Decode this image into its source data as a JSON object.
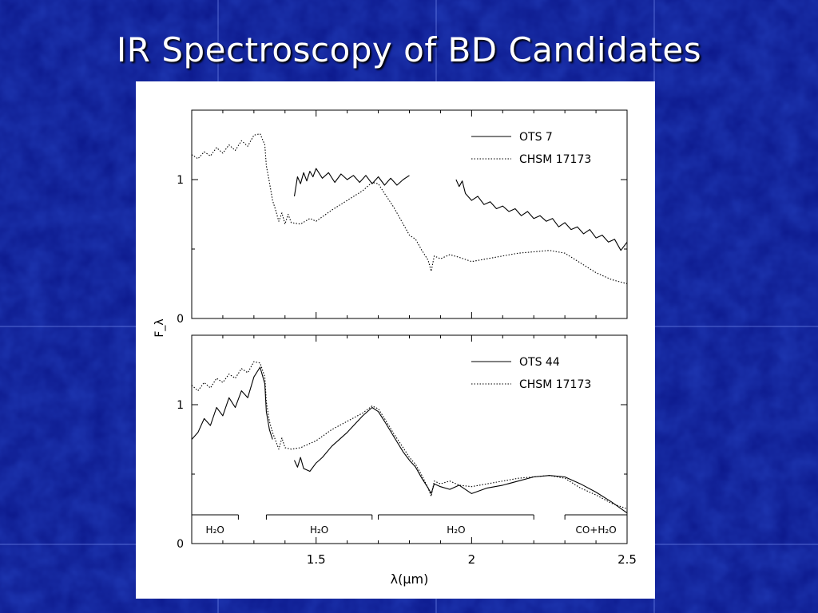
{
  "slide": {
    "title": "IR Spectroscopy of BD Candidates"
  },
  "chart_data": [
    {
      "type": "line",
      "panel": "top",
      "xlim": [
        1.1,
        2.5
      ],
      "ylim": [
        0,
        1.5
      ],
      "yticks": [
        0,
        1
      ],
      "ytick_labels": [
        "0",
        "1"
      ],
      "ylabel": "F_λ",
      "legend_position": "top-right",
      "series": [
        {
          "name": "OTS 7",
          "style": "solid",
          "segments": [
            [
              [
                1.43,
                0.88
              ],
              [
                1.44,
                1.02
              ],
              [
                1.45,
                0.97
              ],
              [
                1.46,
                1.05
              ],
              [
                1.47,
                0.99
              ],
              [
                1.48,
                1.06
              ],
              [
                1.49,
                1.02
              ],
              [
                1.5,
                1.08
              ],
              [
                1.52,
                1.01
              ],
              [
                1.54,
                1.05
              ],
              [
                1.56,
                0.98
              ],
              [
                1.58,
                1.04
              ],
              [
                1.6,
                1.0
              ],
              [
                1.62,
                1.03
              ],
              [
                1.64,
                0.98
              ],
              [
                1.66,
                1.03
              ],
              [
                1.68,
                0.97
              ],
              [
                1.7,
                1.02
              ],
              [
                1.72,
                0.96
              ],
              [
                1.74,
                1.01
              ],
              [
                1.76,
                0.96
              ],
              [
                1.78,
                1.0
              ],
              [
                1.8,
                1.03
              ]
            ],
            [
              [
                1.95,
                1.0
              ],
              [
                1.96,
                0.95
              ],
              [
                1.97,
                0.99
              ],
              [
                1.98,
                0.9
              ],
              [
                2.0,
                0.85
              ],
              [
                2.02,
                0.88
              ],
              [
                2.04,
                0.82
              ],
              [
                2.06,
                0.84
              ],
              [
                2.08,
                0.79
              ],
              [
                2.1,
                0.81
              ],
              [
                2.12,
                0.77
              ],
              [
                2.14,
                0.79
              ],
              [
                2.16,
                0.74
              ],
              [
                2.18,
                0.77
              ],
              [
                2.2,
                0.72
              ],
              [
                2.22,
                0.74
              ],
              [
                2.24,
                0.7
              ],
              [
                2.26,
                0.72
              ],
              [
                2.28,
                0.66
              ],
              [
                2.3,
                0.69
              ],
              [
                2.32,
                0.64
              ],
              [
                2.34,
                0.66
              ],
              [
                2.36,
                0.61
              ],
              [
                2.38,
                0.64
              ],
              [
                2.4,
                0.58
              ],
              [
                2.42,
                0.6
              ],
              [
                2.44,
                0.55
              ],
              [
                2.46,
                0.57
              ],
              [
                2.48,
                0.49
              ],
              [
                2.5,
                0.55
              ]
            ]
          ]
        },
        {
          "name": "CHSM 17173",
          "style": "dotted",
          "segments": [
            [
              [
                1.1,
                1.18
              ],
              [
                1.12,
                1.15
              ],
              [
                1.14,
                1.2
              ],
              [
                1.16,
                1.17
              ],
              [
                1.18,
                1.23
              ],
              [
                1.2,
                1.19
              ],
              [
                1.22,
                1.25
              ],
              [
                1.24,
                1.21
              ],
              [
                1.26,
                1.28
              ],
              [
                1.28,
                1.24
              ],
              [
                1.3,
                1.32
              ],
              [
                1.32,
                1.33
              ],
              [
                1.335,
                1.25
              ],
              [
                1.34,
                1.1
              ],
              [
                1.35,
                0.98
              ],
              [
                1.36,
                0.85
              ],
              [
                1.37,
                0.78
              ],
              [
                1.38,
                0.7
              ],
              [
                1.39,
                0.76
              ],
              [
                1.4,
                0.68
              ],
              [
                1.41,
                0.75
              ],
              [
                1.42,
                0.69
              ],
              [
                1.45,
                0.68
              ],
              [
                1.48,
                0.72
              ],
              [
                1.5,
                0.7
              ],
              [
                1.55,
                0.78
              ],
              [
                1.6,
                0.85
              ],
              [
                1.65,
                0.92
              ],
              [
                1.68,
                0.98
              ],
              [
                1.7,
                0.97
              ],
              [
                1.72,
                0.9
              ],
              [
                1.75,
                0.8
              ],
              [
                1.78,
                0.68
              ],
              [
                1.8,
                0.6
              ],
              [
                1.82,
                0.57
              ],
              [
                1.84,
                0.49
              ],
              [
                1.86,
                0.42
              ],
              [
                1.87,
                0.34
              ],
              [
                1.88,
                0.45
              ],
              [
                1.9,
                0.43
              ],
              [
                1.93,
                0.46
              ],
              [
                1.96,
                0.44
              ],
              [
                2.0,
                0.41
              ],
              [
                2.05,
                0.43
              ],
              [
                2.1,
                0.45
              ],
              [
                2.15,
                0.47
              ],
              [
                2.2,
                0.48
              ],
              [
                2.25,
                0.49
              ],
              [
                2.3,
                0.47
              ],
              [
                2.35,
                0.4
              ],
              [
                2.4,
                0.33
              ],
              [
                2.45,
                0.28
              ],
              [
                2.5,
                0.25
              ]
            ]
          ]
        }
      ]
    },
    {
      "type": "line",
      "panel": "bottom",
      "xlim": [
        1.1,
        2.5
      ],
      "ylim": [
        0,
        1.5
      ],
      "xticks": [
        1.5,
        2,
        2.5
      ],
      "xtick_labels": [
        "1.5",
        "2",
        "2.5"
      ],
      "yticks": [
        0,
        1
      ],
      "ytick_labels": [
        "0",
        "1"
      ],
      "xlabel": "λ(μm)",
      "legend_position": "top-right",
      "series": [
        {
          "name": "OTS 44",
          "style": "solid",
          "segments": [
            [
              [
                1.1,
                0.75
              ],
              [
                1.12,
                0.8
              ],
              [
                1.14,
                0.9
              ],
              [
                1.16,
                0.85
              ],
              [
                1.18,
                0.98
              ],
              [
                1.2,
                0.92
              ],
              [
                1.22,
                1.05
              ],
              [
                1.24,
                0.98
              ],
              [
                1.26,
                1.1
              ],
              [
                1.28,
                1.05
              ],
              [
                1.3,
                1.2
              ],
              [
                1.32,
                1.27
              ],
              [
                1.335,
                1.15
              ],
              [
                1.34,
                0.95
              ],
              [
                1.35,
                0.82
              ],
              [
                1.36,
                0.75
              ]
            ],
            [
              [
                1.43,
                0.6
              ],
              [
                1.44,
                0.55
              ],
              [
                1.45,
                0.62
              ],
              [
                1.46,
                0.54
              ],
              [
                1.48,
                0.52
              ],
              [
                1.5,
                0.58
              ],
              [
                1.52,
                0.62
              ],
              [
                1.55,
                0.7
              ],
              [
                1.6,
                0.8
              ],
              [
                1.65,
                0.92
              ],
              [
                1.68,
                0.98
              ],
              [
                1.7,
                0.95
              ],
              [
                1.72,
                0.88
              ],
              [
                1.75,
                0.77
              ],
              [
                1.78,
                0.66
              ],
              [
                1.8,
                0.6
              ],
              [
                1.82,
                0.55
              ],
              [
                1.84,
                0.47
              ],
              [
                1.86,
                0.4
              ],
              [
                1.87,
                0.36
              ],
              [
                1.88,
                0.43
              ],
              [
                1.9,
                0.41
              ],
              [
                1.93,
                0.39
              ],
              [
                1.96,
                0.42
              ],
              [
                2.0,
                0.36
              ],
              [
                2.05,
                0.4
              ],
              [
                2.1,
                0.42
              ],
              [
                2.15,
                0.45
              ],
              [
                2.2,
                0.48
              ],
              [
                2.25,
                0.49
              ],
              [
                2.3,
                0.48
              ],
              [
                2.35,
                0.43
              ],
              [
                2.4,
                0.37
              ],
              [
                2.45,
                0.3
              ],
              [
                2.5,
                0.22
              ]
            ]
          ]
        },
        {
          "name": "CHSM 17173",
          "style": "dotted",
          "segments": [
            [
              [
                1.1,
                1.14
              ],
              [
                1.12,
                1.1
              ],
              [
                1.14,
                1.16
              ],
              [
                1.16,
                1.12
              ],
              [
                1.18,
                1.19
              ],
              [
                1.2,
                1.16
              ],
              [
                1.22,
                1.22
              ],
              [
                1.24,
                1.19
              ],
              [
                1.26,
                1.26
              ],
              [
                1.28,
                1.23
              ],
              [
                1.3,
                1.31
              ],
              [
                1.32,
                1.3
              ],
              [
                1.335,
                1.2
              ],
              [
                1.34,
                1.02
              ],
              [
                1.35,
                0.88
              ],
              [
                1.36,
                0.8
              ],
              [
                1.37,
                0.74
              ],
              [
                1.38,
                0.68
              ],
              [
                1.39,
                0.76
              ],
              [
                1.4,
                0.69
              ],
              [
                1.42,
                0.68
              ],
              [
                1.45,
                0.69
              ],
              [
                1.5,
                0.74
              ],
              [
                1.55,
                0.82
              ],
              [
                1.6,
                0.88
              ],
              [
                1.65,
                0.94
              ],
              [
                1.68,
                0.99
              ],
              [
                1.7,
                0.97
              ],
              [
                1.72,
                0.9
              ],
              [
                1.75,
                0.79
              ],
              [
                1.78,
                0.69
              ],
              [
                1.8,
                0.62
              ],
              [
                1.82,
                0.57
              ],
              [
                1.84,
                0.49
              ],
              [
                1.86,
                0.4
              ],
              [
                1.87,
                0.34
              ],
              [
                1.88,
                0.45
              ],
              [
                1.9,
                0.43
              ],
              [
                1.93,
                0.45
              ],
              [
                1.96,
                0.42
              ],
              [
                2.0,
                0.41
              ],
              [
                2.05,
                0.43
              ],
              [
                2.1,
                0.45
              ],
              [
                2.15,
                0.47
              ],
              [
                2.2,
                0.48
              ],
              [
                2.25,
                0.49
              ],
              [
                2.3,
                0.47
              ],
              [
                2.35,
                0.4
              ],
              [
                2.4,
                0.35
              ],
              [
                2.45,
                0.29
              ],
              [
                2.5,
                0.25
              ]
            ]
          ]
        }
      ],
      "annotations": [
        {
          "label": "H₂O",
          "x_range": [
            1.1,
            1.25
          ]
        },
        {
          "label": "H₂O",
          "x_range": [
            1.34,
            1.68
          ]
        },
        {
          "label": "H₂O",
          "x_range": [
            1.7,
            2.2
          ]
        },
        {
          "label": "CO+H₂O",
          "x_range": [
            2.3,
            2.5
          ]
        }
      ]
    }
  ]
}
